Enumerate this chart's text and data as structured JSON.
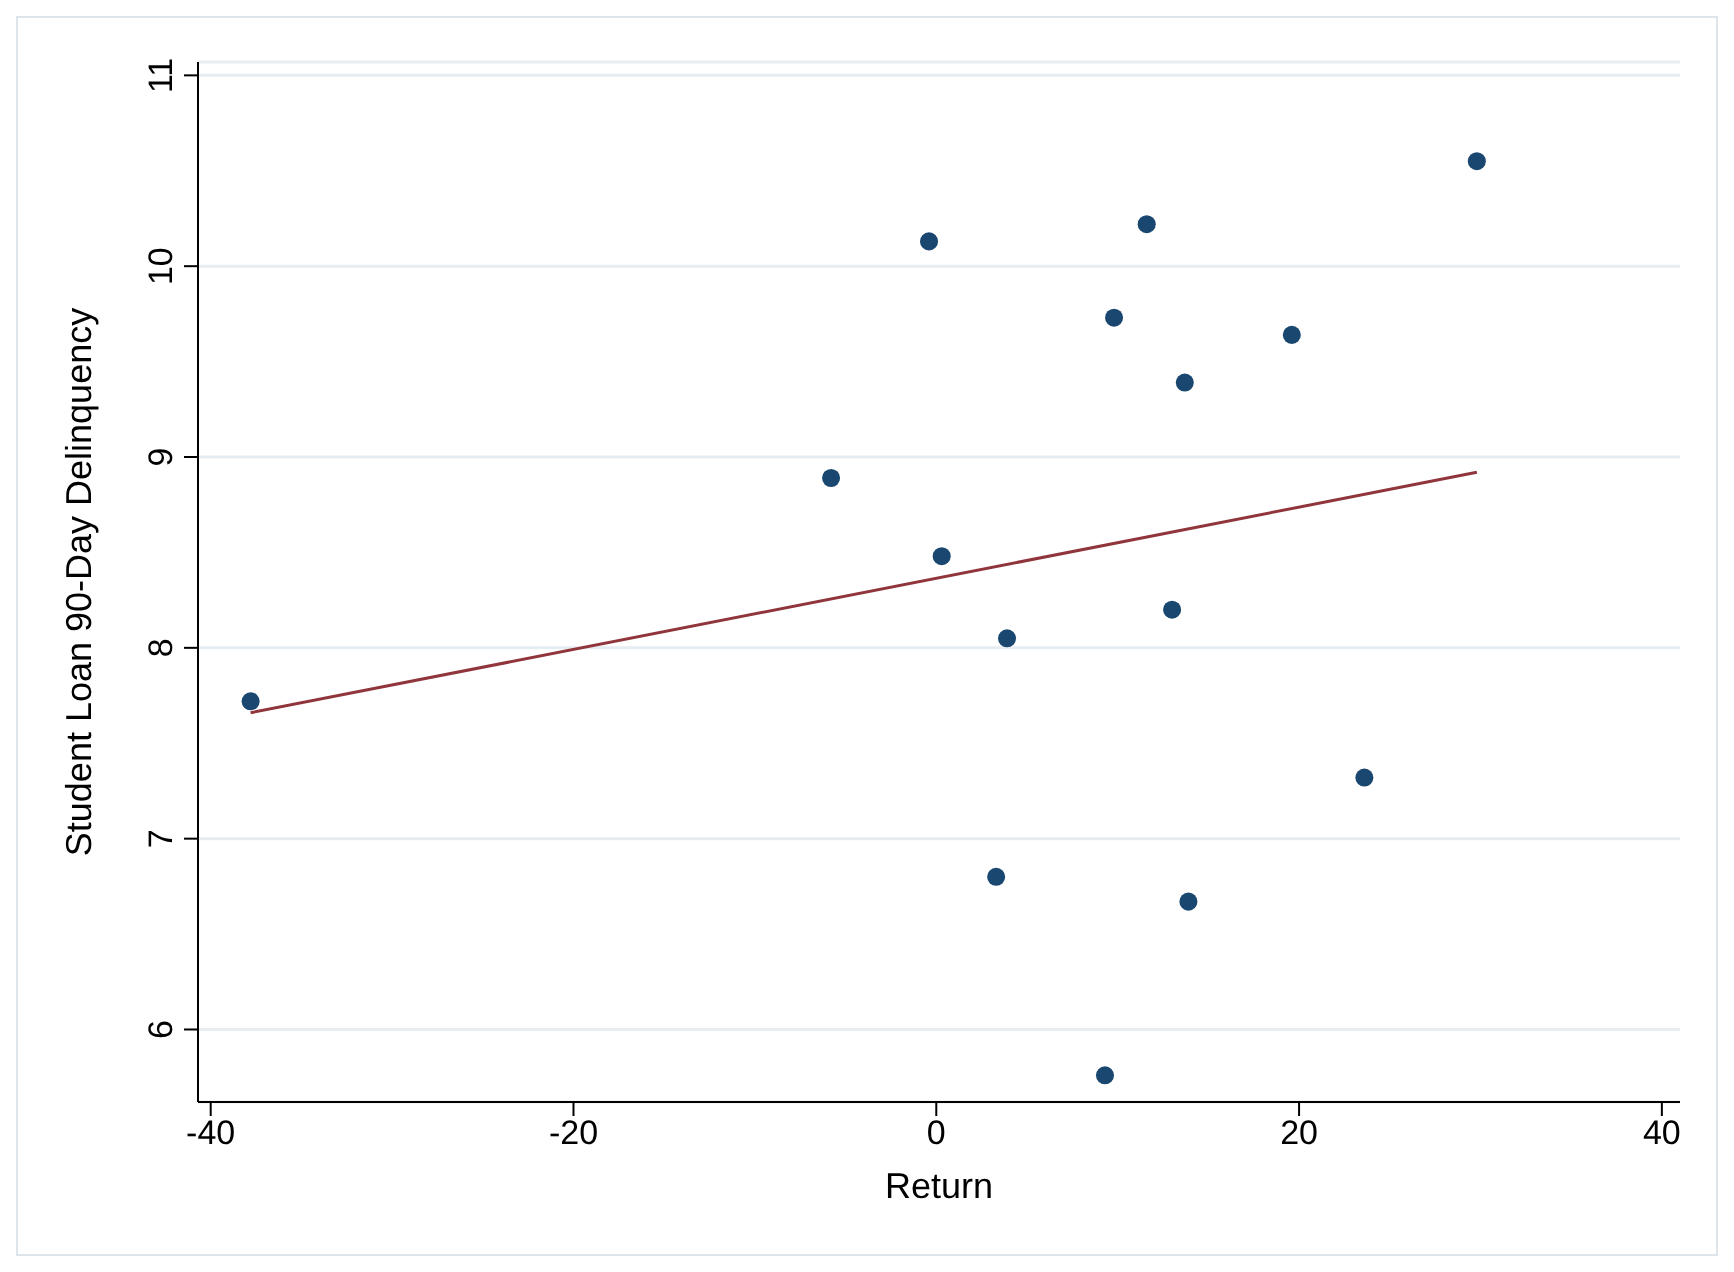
{
  "chart_data": {
    "type": "scatter",
    "xlabel": "Return",
    "ylabel": "Student Loan 90-Day Delinquency",
    "xlim": [
      -40.7,
      41
    ],
    "xticks": [
      -40,
      -20,
      0,
      20,
      40
    ],
    "ylim": [
      5.62,
      11.07
    ],
    "yticks": [
      6,
      7,
      8,
      9,
      10,
      11
    ],
    "grid": "y",
    "series": [
      {
        "type": "scatter",
        "marker": "circle",
        "color": "#1a476f",
        "x": [
          -37.8,
          -5.8,
          -0.4,
          0.3,
          3.3,
          3.9,
          9.3,
          9.8,
          11.6,
          13.0,
          13.7,
          13.9,
          19.6,
          23.6,
          29.8
        ],
        "values": [
          7.72,
          8.89,
          10.13,
          8.48,
          6.8,
          8.05,
          5.76,
          9.73,
          10.22,
          8.2,
          9.39,
          6.67,
          9.64,
          7.32,
          10.55
        ]
      },
      {
        "type": "line",
        "marker": "none",
        "color": "#90353b",
        "x": [
          -37.8,
          29.8
        ],
        "values": [
          7.66,
          8.92
        ]
      }
    ]
  }
}
